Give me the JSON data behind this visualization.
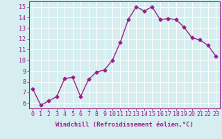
{
  "x": [
    0,
    1,
    2,
    3,
    4,
    5,
    6,
    7,
    8,
    9,
    10,
    11,
    12,
    13,
    14,
    15,
    16,
    17,
    18,
    19,
    20,
    21,
    22,
    23
  ],
  "y": [
    7.3,
    5.8,
    6.2,
    6.6,
    8.3,
    8.4,
    6.6,
    8.2,
    8.9,
    9.1,
    10.0,
    11.7,
    13.8,
    15.0,
    14.6,
    15.0,
    13.8,
    13.9,
    13.8,
    13.1,
    12.1,
    11.9,
    11.4,
    10.4
  ],
  "line_color": "#9B1F8A",
  "marker": "D",
  "marker_size": 2.5,
  "line_width": 1.0,
  "bg_color": "#D6EEF0",
  "grid_color": "#FFFFFF",
  "xlabel": "Windchill (Refroidissement éolien,°C)",
  "ylabel": "",
  "ylim": [
    5.5,
    15.5
  ],
  "yticks": [
    6,
    7,
    8,
    9,
    10,
    11,
    12,
    13,
    14,
    15
  ],
  "xlim": [
    -0.5,
    23.5
  ],
  "xticks": [
    0,
    1,
    2,
    3,
    4,
    5,
    6,
    7,
    8,
    9,
    10,
    11,
    12,
    13,
    14,
    15,
    16,
    17,
    18,
    19,
    20,
    21,
    22,
    23
  ],
  "xlabel_fontsize": 6.5,
  "tick_fontsize": 6.0,
  "tick_color": "#9B1F8A",
  "axis_color": "#9B1F8A"
}
